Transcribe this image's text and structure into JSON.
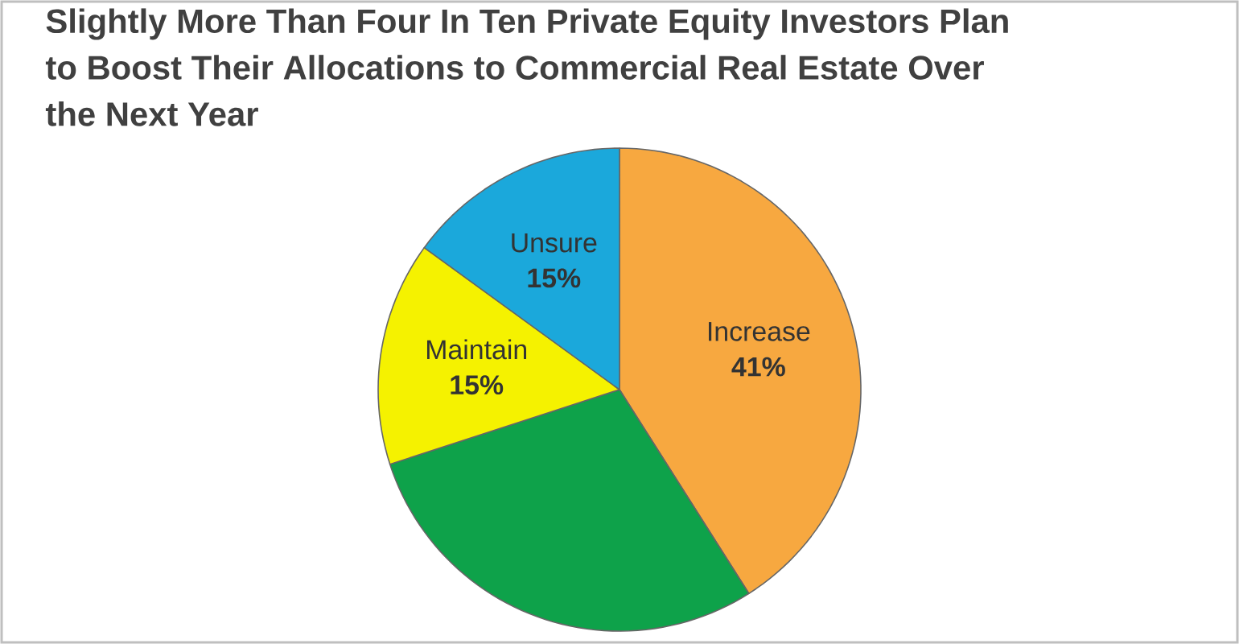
{
  "chart_data": {
    "type": "pie",
    "title": "Slightly More Than Four In Ten Private Equity Investors Plan to Boost Their Allocations to Commercial Real Estate Over the Next Year",
    "categories": [
      "Increase",
      null,
      "Maintain",
      "Unsure"
    ],
    "values": [
      41,
      29,
      15,
      15
    ],
    "colors": [
      "#f7a840",
      "#0ea24a",
      "#f5f200",
      "#1ba8db"
    ],
    "value_labels": [
      "41%",
      null,
      "15%",
      "15%"
    ]
  }
}
